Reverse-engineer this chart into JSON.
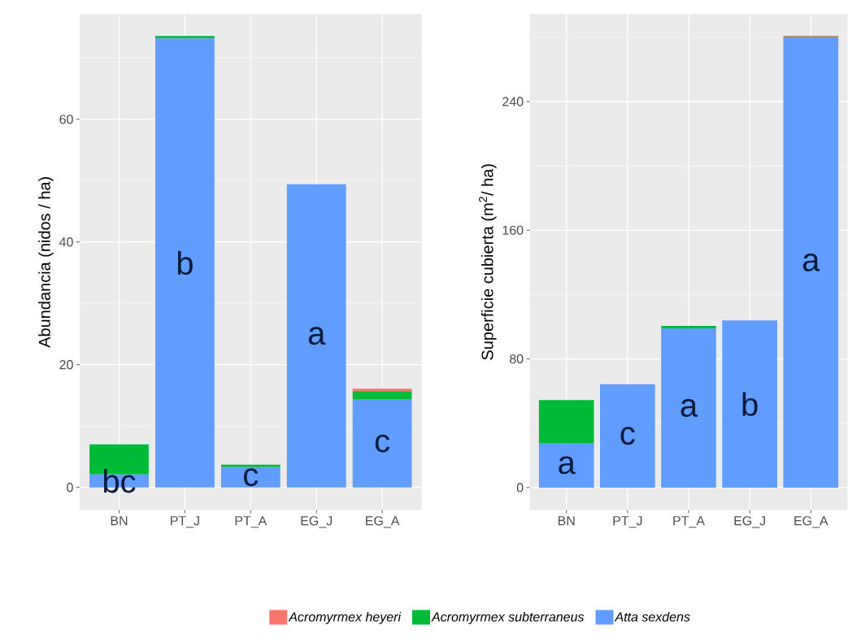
{
  "chart_data": [
    {
      "type": "bar",
      "stacked": true,
      "categories": [
        "BN",
        "PT_J",
        "PT_A",
        "EG_J",
        "EG_A"
      ],
      "ylabel": "Abundancia (nidos / ha)",
      "ylim": [
        -3.7,
        77.2
      ],
      "yticks": [
        0,
        20,
        40,
        60
      ],
      "grid": true,
      "legend": "bottom",
      "series": [
        {
          "name": "Atta sexdens",
          "color": "#619cff",
          "values": [
            2.1,
            73.2,
            3.3,
            49.4,
            14.3
          ]
        },
        {
          "name": "Acromyrmex subterraneus",
          "color": "#00ba38",
          "values": [
            4.9,
            0.4,
            0.4,
            null,
            1.4
          ]
        },
        {
          "name": "Acromyrmex heyeri",
          "color": "#f8766d",
          "values": [
            null,
            null,
            null,
            null,
            0.4
          ]
        }
      ],
      "annotations": [
        "bc",
        "b",
        "c",
        "a",
        "c"
      ]
    },
    {
      "type": "bar",
      "stacked": true,
      "categories": [
        "BN",
        "PT_J",
        "PT_A",
        "EG_J",
        "EG_A"
      ],
      "ylabel": "Superficie cubierta (m$^{2}$/ ha)",
      "ylim": [
        -14,
        294.6
      ],
      "yticks": [
        0,
        80,
        160,
        240
      ],
      "grid": true,
      "series": [
        {
          "color": "#619cff",
          "values": [
            27.8,
            64.3,
            99.0,
            103.9,
            280
          ]
        },
        {
          "color": "#00ba38",
          "values": [
            26.6,
            null,
            1.5,
            null,
            0.5
          ]
        },
        {
          "color": "#f8766d",
          "values": [
            null,
            null,
            null,
            null,
            0.5
          ]
        }
      ],
      "annotations": [
        "a",
        "c",
        "a",
        "b",
        "a"
      ]
    }
  ]
}
